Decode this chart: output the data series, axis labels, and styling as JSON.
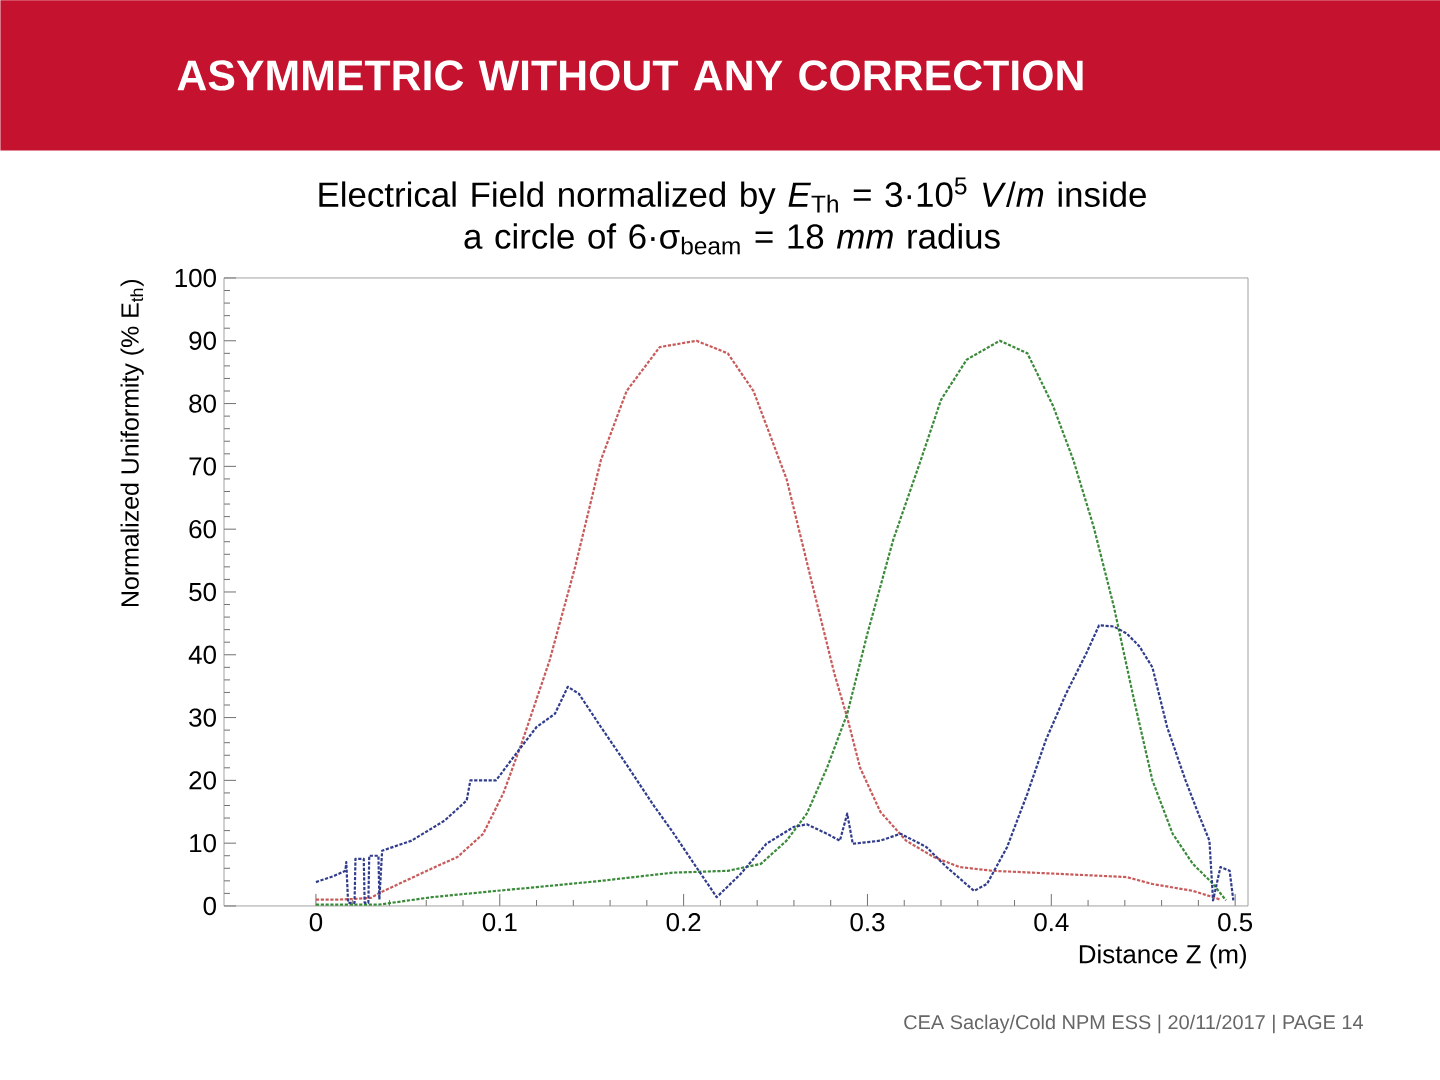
{
  "chart_data": {
    "type": "line",
    "title": "ASYMMETRIC WITHOUT ANY CORRECTION",
    "subtitle": "Electrical Field normalized by *E*$_{Th}$ = 3·10$^{5}$ *V*/*m* inside a circle of 6·σ$_{beam}$ = 18 *mm* radius",
    "xlabel": "Distance Z (m)",
    "ylabel": "Normalized Uniformity (% E$_{th}$)",
    "annotations": [
      "CEA Saclay/Cold NPM ESS | 20/11/2017 | PAGE 14"
    ],
    "xlim": [
      -0.05,
      0.507
    ],
    "ylim": [
      0,
      100
    ],
    "xticks": [
      0,
      0.1,
      0.2,
      0.3,
      0.4,
      0.5
    ],
    "yticks": [
      0,
      10,
      20,
      30,
      40,
      50,
      60,
      70,
      80,
      90,
      100
    ],
    "line_style": "dotted",
    "series": [
      {
        "color": "#c85a5a",
        "x": [
          0,
          0.01,
          0.02,
          0.03,
          0.034,
          0.045,
          0.056,
          0.067,
          0.077,
          0.091,
          0.102,
          0.112,
          0.127,
          0.141,
          0.155,
          0.169,
          0.187,
          0.207,
          0.224,
          0.238,
          0.256,
          0.271,
          0.282,
          0.289,
          0.296,
          0.307,
          0.321,
          0.336,
          0.35,
          0.368,
          0.405,
          0.441,
          0.455,
          0.477,
          0.488,
          0.492
        ],
        "values": [
          1,
          1,
          1.1,
          1.3,
          2,
          3.5,
          5,
          6.5,
          7.8,
          11.5,
          18,
          26,
          39,
          54,
          71,
          82,
          89,
          90,
          88,
          82,
          68,
          50,
          37,
          30,
          22,
          15,
          10.4,
          7.8,
          6.2,
          5.6,
          5.1,
          4.6,
          3.5,
          2.4,
          1.4,
          1
        ]
      },
      {
        "color": "#3a8a3a",
        "x": [
          0,
          0.034,
          0.063,
          0.098,
          0.12,
          0.155,
          0.194,
          0.224,
          0.242,
          0.256,
          0.267,
          0.278,
          0.289,
          0.3,
          0.314,
          0.329,
          0.34,
          0.354,
          0.372,
          0.387,
          0.401,
          0.412,
          0.423,
          0.434,
          0.445,
          0.455,
          0.466,
          0.477,
          0.488,
          0.495
        ],
        "values": [
          0.2,
          0.2,
          1.4,
          2.4,
          3,
          4,
          5.3,
          5.6,
          6.7,
          10.4,
          14.7,
          22,
          30.6,
          43.4,
          58.3,
          71,
          80.6,
          87,
          90,
          88,
          79.6,
          71,
          60.4,
          47.7,
          32.8,
          20,
          11.5,
          6.7,
          3.5,
          0.9
        ]
      },
      {
        "color": "#303c8c",
        "x": [
          0,
          0.01,
          0.016,
          0.0165,
          0.0175,
          0.021,
          0.0215,
          0.026,
          0.0265,
          0.0285,
          0.029,
          0.034,
          0.0345,
          0.036,
          0.052,
          0.07,
          0.082,
          0.084,
          0.098,
          0.109,
          0.12,
          0.13,
          0.137,
          0.143,
          0.155,
          0.169,
          0.183,
          0.194,
          0.205,
          0.218,
          0.231,
          0.245,
          0.26,
          0.267,
          0.278,
          0.285,
          0.289,
          0.292,
          0.307,
          0.318,
          0.332,
          0.343,
          0.358,
          0.365,
          0.376,
          0.387,
          0.397,
          0.408,
          0.419,
          0.426,
          0.434,
          0.441,
          0.448,
          0.455,
          0.463,
          0.473,
          0.48,
          0.486,
          0.488,
          0.492,
          0.497,
          0.499
        ],
        "values": [
          3.8,
          4.8,
          5.6,
          7,
          0.5,
          0.5,
          7.5,
          7.5,
          0.5,
          0.5,
          8,
          8,
          1,
          8.8,
          10.4,
          13.6,
          16.8,
          20,
          20,
          24.3,
          28.5,
          30.6,
          34.9,
          33.8,
          28.5,
          22.5,
          16.3,
          11.8,
          7,
          1.4,
          5.1,
          9.9,
          12.6,
          13,
          11.5,
          10.4,
          14.7,
          9.9,
          10.4,
          11.5,
          9.4,
          6.2,
          2.4,
          3.5,
          9.4,
          17.9,
          26.4,
          33.8,
          40.2,
          44.7,
          44.5,
          43.4,
          41.3,
          38,
          28.5,
          20,
          14.7,
          10.4,
          0.9,
          6.2,
          5.6,
          0.9
        ]
      }
    ]
  }
}
